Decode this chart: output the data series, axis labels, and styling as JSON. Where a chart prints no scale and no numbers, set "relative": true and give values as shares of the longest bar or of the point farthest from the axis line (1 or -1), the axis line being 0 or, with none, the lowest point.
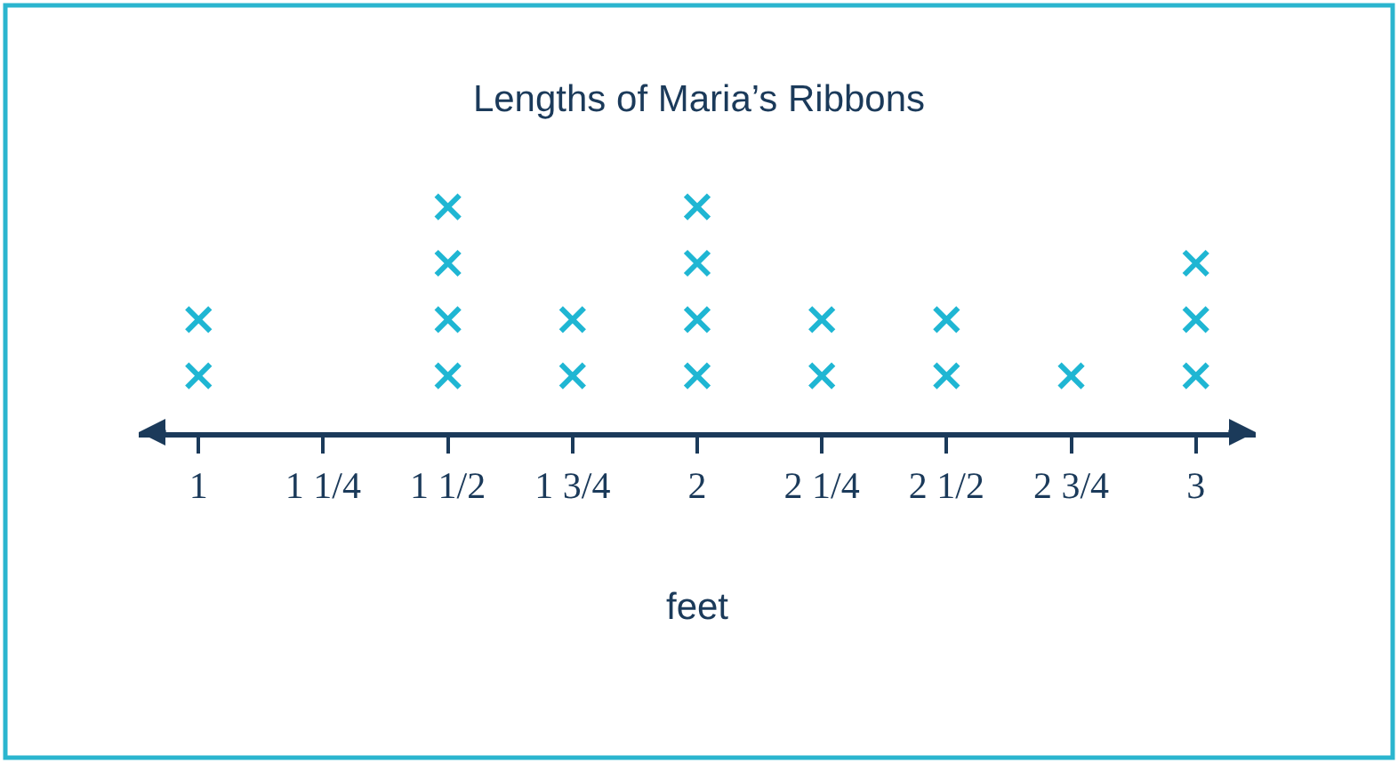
{
  "chart_data": {
    "type": "scatter",
    "title": "Lengths of Maria’s Ribbons",
    "xlabel": "feet",
    "x": [
      1,
      1,
      1.5,
      1.5,
      1.5,
      1.5,
      1.75,
      1.75,
      2,
      2,
      2,
      2,
      2.25,
      2.25,
      2.5,
      2.5,
      2.75,
      3,
      3,
      3
    ],
    "values": [
      0.25,
      0.5,
      0.25,
      0.5,
      0.75,
      1,
      0.25,
      0.5,
      0.25,
      0.5,
      0.75,
      1,
      0.25,
      0.5,
      0.25,
      0.5,
      0.25,
      0.25,
      0.5,
      0.75
    ],
    "color": "#1fb6d3",
    "relative": true,
    "marker": "cross",
    "xlim": [
      0.88,
      3.12
    ],
    "xticks": [
      1,
      {
        "value": 1.25,
        "label": "1 1/4"
      },
      {
        "value": 1.5,
        "label": "1 1/2"
      },
      {
        "value": 1.75,
        "label": "1 3/4"
      },
      2,
      {
        "value": 2.25,
        "label": "2 1/4"
      },
      {
        "value": 2.5,
        "label": "2 1/2"
      },
      {
        "value": 2.75,
        "label": "2 3/4"
      },
      3
    ]
  }
}
